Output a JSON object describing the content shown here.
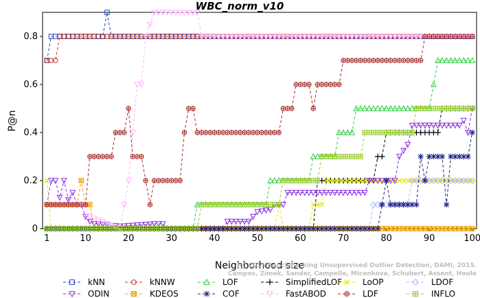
{
  "chart_data": {
    "type": "line",
    "title": "WBC_norm_v10",
    "xlabel": "Neighborhood size",
    "ylabel": "P@n",
    "xlim": [
      0,
      101
    ],
    "ylim": [
      0,
      0.9
    ],
    "xticks": [
      1,
      10,
      20,
      30,
      40,
      50,
      60,
      70,
      80,
      90,
      100
    ],
    "yticks": [
      0,
      0.2,
      0.4,
      0.6,
      0.8
    ],
    "ytick_labels": [
      "0",
      "0.2",
      "0.4",
      "0.6",
      "0.8"
    ],
    "credit": [
      "(c) 2015 Benchmarking Unsupervised Outlier Detection, DAMI, 2015.",
      "Campos, Zimek, Sander, Campello, Micenkova, Schubert, Assent, Houle"
    ],
    "series": [
      {
        "name": "kNN",
        "color": "#1f3fbf",
        "marker": "square",
        "points": [
          [
            1,
            0.7
          ],
          [
            2,
            0.8
          ],
          [
            14,
            0.8
          ],
          [
            15,
            0.9
          ],
          [
            16,
            0.8
          ],
          [
            100,
            0.8
          ]
        ]
      },
      {
        "name": "kNNW",
        "color": "#c0392b",
        "marker": "circle",
        "points": [
          [
            1,
            0.7
          ],
          [
            3,
            0.7
          ],
          [
            4,
            0.8
          ],
          [
            100,
            0.8
          ]
        ]
      },
      {
        "name": "LOF",
        "color": "#2ecc40",
        "marker": "triangle",
        "points": [
          [
            1,
            0
          ],
          [
            35,
            0
          ],
          [
            36,
            0.1
          ],
          [
            52,
            0.1
          ],
          [
            53,
            0.2
          ],
          [
            62,
            0.2
          ],
          [
            63,
            0.3
          ],
          [
            68,
            0.3
          ],
          [
            69,
            0.4
          ],
          [
            72,
            0.4
          ],
          [
            73,
            0.5
          ],
          [
            90,
            0.5
          ],
          [
            91,
            0.6
          ],
          [
            92,
            0.7
          ],
          [
            100,
            0.7
          ]
        ]
      },
      {
        "name": "SimplifiedLOF",
        "color": "#000000",
        "marker": "plus",
        "points": [
          [
            1,
            0
          ],
          [
            63,
            0
          ],
          [
            64,
            0.2
          ],
          [
            77,
            0.2
          ],
          [
            78,
            0.3
          ],
          [
            79,
            0.3
          ],
          [
            80,
            0.4
          ],
          [
            92,
            0.4
          ],
          [
            93,
            0.5
          ],
          [
            100,
            0.5
          ]
        ]
      },
      {
        "name": "LoOP",
        "color": "#e6e600",
        "marker": "x",
        "points": [
          [
            1,
            0.2
          ],
          [
            2,
            0
          ],
          [
            54,
            0
          ],
          [
            55,
            0.1
          ],
          [
            56,
            0
          ],
          [
            62,
            0
          ],
          [
            63,
            0.1
          ],
          [
            65,
            0.1
          ],
          [
            66,
            0.2
          ],
          [
            100,
            0.2
          ]
        ]
      },
      {
        "name": "LDOF",
        "color": "#b3b3ff",
        "marker": "diamond",
        "points": [
          [
            1,
            0
          ],
          [
            76,
            0
          ],
          [
            77,
            0.1
          ],
          [
            85,
            0.1
          ],
          [
            86,
            0.2
          ],
          [
            100,
            0.2
          ]
        ]
      },
      {
        "name": "ODIN",
        "color": "#8a2be2",
        "marker": "triangle-down",
        "points": [
          [
            1,
            0.1
          ],
          [
            2,
            0.2
          ],
          [
            3,
            0.2
          ],
          [
            4,
            0.13
          ],
          [
            5,
            0.2
          ],
          [
            6,
            0.12
          ],
          [
            7,
            0.15
          ],
          [
            8,
            0.1
          ],
          [
            9,
            0.1
          ],
          [
            10,
            0.05
          ],
          [
            11,
            0.03
          ],
          [
            12,
            0.02
          ],
          [
            13,
            0.02
          ],
          [
            18,
            0.01
          ],
          [
            26,
            0.02
          ],
          [
            28,
            0.02
          ],
          [
            29,
            0
          ],
          [
            42,
            0
          ],
          [
            43,
            0.03
          ],
          [
            48,
            0.03
          ],
          [
            49,
            0.05
          ],
          [
            50,
            0.07
          ],
          [
            53,
            0.08
          ],
          [
            54,
            0.1
          ],
          [
            56,
            0.1
          ],
          [
            57,
            0.15
          ],
          [
            75,
            0.15
          ],
          [
            76,
            0.2
          ],
          [
            82,
            0.2
          ],
          [
            83,
            0.3
          ],
          [
            85,
            0.35
          ],
          [
            86,
            0.43
          ],
          [
            97,
            0.43
          ],
          [
            98,
            0.45
          ],
          [
            99,
            0.4
          ],
          [
            100,
            0.5
          ]
        ]
      },
      {
        "name": "KDEOS",
        "color": "#f0a500",
        "marker": "square-x",
        "points": [
          [
            1,
            0.1
          ],
          [
            8,
            0.1
          ],
          [
            9,
            0.2
          ],
          [
            10,
            0.1
          ],
          [
            11,
            0.1
          ],
          [
            12,
            0
          ],
          [
            100,
            0
          ]
        ]
      },
      {
        "name": "COF",
        "color": "#1a237e",
        "marker": "star",
        "points": [
          [
            1,
            0
          ],
          [
            78,
            0
          ],
          [
            79,
            0.1
          ],
          [
            80,
            0.2
          ],
          [
            81,
            0.1
          ],
          [
            87,
            0.1
          ],
          [
            88,
            0.3
          ],
          [
            89,
            0.2
          ],
          [
            90,
            0.3
          ],
          [
            93,
            0.3
          ],
          [
            94,
            0.1
          ],
          [
            95,
            0.3
          ],
          [
            99,
            0.3
          ],
          [
            100,
            0.4
          ]
        ]
      },
      {
        "name": "FastABOD",
        "color": "#ffb3ff",
        "marker": "triangle-down-open",
        "points": [
          [
            1,
            0.1
          ],
          [
            10,
            0.1
          ],
          [
            11,
            0.05
          ],
          [
            18,
            0
          ],
          [
            20,
            0.2
          ],
          [
            22,
            0.6
          ],
          [
            23,
            0.6
          ],
          [
            24,
            0.8
          ],
          [
            26,
            0.9
          ],
          [
            36,
            0.9
          ],
          [
            37,
            0.8
          ],
          [
            100,
            0.8
          ]
        ]
      },
      {
        "name": "LDF",
        "color": "#a52a2a",
        "marker": "circle-plus",
        "points": [
          [
            1,
            0.1
          ],
          [
            10,
            0.1
          ],
          [
            11,
            0.3
          ],
          [
            16,
            0.3
          ],
          [
            17,
            0.4
          ],
          [
            19,
            0.4
          ],
          [
            20,
            0.5
          ],
          [
            21,
            0.3
          ],
          [
            23,
            0.3
          ],
          [
            24,
            0.2
          ],
          [
            25,
            0.1
          ],
          [
            26,
            0.2
          ],
          [
            32,
            0.2
          ],
          [
            33,
            0.4
          ],
          [
            34,
            0.5
          ],
          [
            35,
            0.5
          ],
          [
            36,
            0.4
          ],
          [
            55,
            0.4
          ],
          [
            56,
            0.5
          ],
          [
            58,
            0.5
          ],
          [
            59,
            0.6
          ],
          [
            62,
            0.6
          ],
          [
            63,
            0.5
          ],
          [
            64,
            0.6
          ],
          [
            69,
            0.6
          ],
          [
            70,
            0.7
          ],
          [
            88,
            0.7
          ],
          [
            89,
            0.8
          ],
          [
            100,
            0.8
          ]
        ]
      },
      {
        "name": "INFLO",
        "color": "#9acd32",
        "marker": "square-cross",
        "points": [
          [
            1,
            0
          ],
          [
            36,
            0
          ],
          [
            37,
            0.1
          ],
          [
            55,
            0.1
          ],
          [
            56,
            0.2
          ],
          [
            64,
            0.2
          ],
          [
            65,
            0.3
          ],
          [
            74,
            0.3
          ],
          [
            75,
            0.4
          ],
          [
            86,
            0.4
          ],
          [
            87,
            0.5
          ],
          [
            100,
            0.5
          ]
        ]
      }
    ]
  }
}
